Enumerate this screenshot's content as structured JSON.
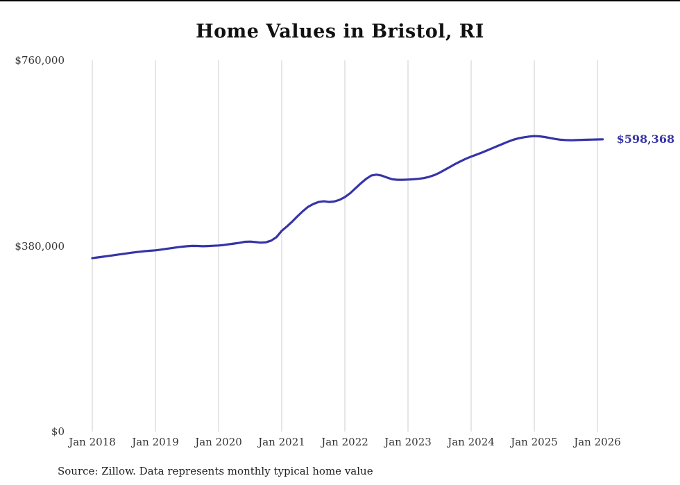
{
  "chart": {
    "title": "Home Values in Bristol, RI",
    "end_label": "$598,368",
    "line_color": "#3634a8",
    "grid_color": "#cccccc",
    "text_color": "#333333"
  },
  "source": "Source: Zillow. Data represents monthly typical home value",
  "chart_data": {
    "type": "line",
    "title": "Home Values in Bristol, RI",
    "xlabel": "",
    "ylabel": "",
    "ylim": [
      0,
      760000
    ],
    "grid": "vertical-only",
    "legend": "none",
    "x_tick_labels": [
      "Jan 2018",
      "Jan 2019",
      "Jan 2020",
      "Jan 2021",
      "Jan 2022",
      "Jan 2023",
      "Jan 2024",
      "Jan 2025",
      "Jan 2026"
    ],
    "y_ticks": [
      {
        "label": "$0",
        "value": 0
      },
      {
        "label": "$380,000",
        "value": 380000
      },
      {
        "label": "$760,000",
        "value": 760000
      }
    ],
    "x_monthly_from": "Jan 2018",
    "x_monthly_to": "Feb 2026",
    "end_value": 598368,
    "end_value_label": "$598,368",
    "series": [
      {
        "name": "Typical home value",
        "values": [
          355000,
          356500,
          358000,
          359500,
          361000,
          362500,
          364000,
          365500,
          367000,
          368200,
          369300,
          370200,
          371000,
          372500,
          374000,
          375500,
          377000,
          378500,
          379500,
          380200,
          380000,
          379400,
          379800,
          380400,
          381000,
          382000,
          383500,
          385000,
          386500,
          388500,
          389000,
          388000,
          386800,
          387500,
          391000,
          398000,
          411000,
          420000,
          430000,
          441000,
          451000,
          460000,
          466000,
          470000,
          471500,
          470000,
          471000,
          474500,
          480000,
          488000,
          498000,
          508000,
          517000,
          524000,
          526000,
          524000,
          520000,
          516500,
          515500,
          515500,
          516000,
          516500,
          517500,
          519000,
          521500,
          525000,
          530000,
          536000,
          542000,
          548000,
          553500,
          558500,
          563000,
          567000,
          571000,
          575500,
          580000,
          584500,
          589000,
          593500,
          597500,
          600500,
          602500,
          604000,
          605000,
          604500,
          603000,
          601000,
          599000,
          597500,
          596800,
          596500,
          596800,
          597200,
          597500,
          597800,
          598100,
          598368
        ]
      }
    ]
  }
}
